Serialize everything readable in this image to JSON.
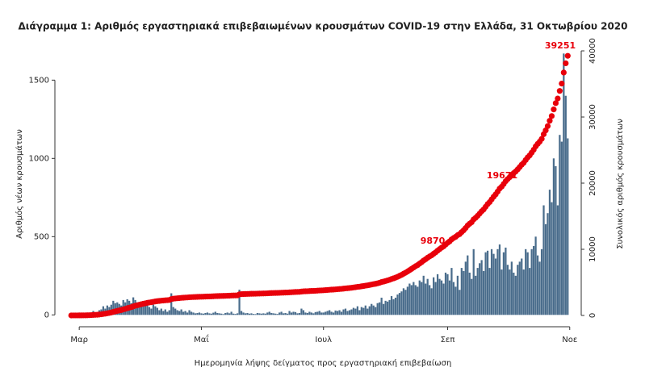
{
  "chart_data": {
    "type": "bar",
    "title": "Διάγραμμα 1: Αριθμός εργαστηριακά επιβεβαιωμένων κρουσμάτων COVID-19 στην Ελλάδα, 31 Οκτωβρίου 2020",
    "x_label": "Ημερομηνία λήψης δείγματος προς εργαστηριακή επιβεβαίωση",
    "y_label": "Αριθμός νέων κρουσμάτων",
    "y2_label": "Συνολικός αριθμός κρουσμάτων",
    "annotations": [
      "9870",
      "19671",
      "39251"
    ],
    "categories": [
      null,
      null,
      null,
      null,
      "Μαρ",
      null,
      null,
      null,
      null,
      null,
      null,
      null,
      null,
      null,
      null,
      null,
      null,
      null,
      null,
      null,
      null,
      null,
      null,
      null,
      null,
      null,
      null,
      null,
      null,
      null,
      null,
      null,
      null,
      null,
      null,
      null,
      null,
      null,
      null,
      null,
      null,
      null,
      null,
      null,
      null,
      null,
      null,
      null,
      null,
      null,
      null,
      null,
      null,
      null,
      null,
      null,
      null,
      null,
      null,
      null,
      null,
      null,
      null,
      null,
      null,
      "Μαΐ",
      null,
      null,
      null,
      null,
      null,
      null,
      null,
      null,
      null,
      null,
      null,
      null,
      null,
      null,
      null,
      null,
      null,
      null,
      null,
      null,
      null,
      null,
      null,
      null,
      null,
      null,
      null,
      null,
      null,
      null,
      null,
      null,
      null,
      null,
      null,
      null,
      null,
      null,
      null,
      null,
      null,
      null,
      null,
      null,
      null,
      null,
      null,
      null,
      null,
      null,
      null,
      null,
      null,
      null,
      null,
      null,
      null,
      null,
      null,
      null,
      "Ιουλ",
      null,
      null,
      null,
      null,
      null,
      null,
      null,
      null,
      null,
      null,
      null,
      null,
      null,
      null,
      null,
      null,
      null,
      null,
      null,
      null,
      null,
      null,
      null,
      null,
      null,
      null,
      null,
      null,
      null,
      null,
      null,
      null,
      null,
      null,
      null,
      null,
      null,
      null,
      null,
      null,
      null,
      null,
      null,
      null,
      null,
      null,
      null,
      null,
      null,
      null,
      null,
      null,
      null,
      null,
      null,
      null,
      null,
      null,
      null,
      null,
      null,
      "Σεπ",
      null,
      null,
      null,
      null,
      null,
      null,
      null,
      null,
      null,
      null,
      null,
      null,
      null,
      null,
      null,
      null,
      null,
      null,
      null,
      null,
      null,
      null,
      null,
      null,
      null,
      null,
      null,
      null,
      null,
      null,
      null,
      null,
      null,
      null,
      null,
      null,
      null,
      null,
      null,
      null,
      null,
      null,
      null,
      null,
      null,
      null,
      null,
      null,
      null,
      null,
      null,
      null,
      null,
      null,
      null,
      null,
      null,
      null,
      null,
      null,
      "Νοε"
    ],
    "series": [
      {
        "name": "Νέα κρούσματα",
        "color": "#4a6d8c",
        "values": [
          1,
          2,
          0,
          4,
          3,
          0,
          2,
          0,
          14,
          10,
          13,
          25,
          16,
          17,
          30,
          35,
          55,
          40,
          60,
          50,
          65,
          90,
          75,
          80,
          70,
          60,
          95,
          80,
          100,
          90,
          75,
          112,
          95,
          80,
          70,
          85,
          70,
          60,
          75,
          50,
          40,
          65,
          55,
          45,
          30,
          40,
          25,
          35,
          20,
          30,
          138,
          50,
          40,
          30,
          25,
          35,
          20,
          25,
          15,
          30,
          20,
          15,
          10,
          12,
          15,
          10,
          8,
          12,
          15,
          10,
          8,
          14,
          20,
          12,
          10,
          8,
          5,
          12,
          15,
          10,
          20,
          8,
          6,
          10,
          161,
          25,
          15,
          10,
          12,
          8,
          10,
          6,
          5,
          12,
          10,
          8,
          10,
          8,
          15,
          20,
          12,
          10,
          8,
          6,
          15,
          20,
          10,
          12,
          8,
          25,
          15,
          20,
          18,
          10,
          12,
          40,
          30,
          15,
          12,
          20,
          15,
          10,
          18,
          20,
          25,
          15,
          15,
          20,
          25,
          30,
          20,
          15,
          28,
          25,
          30,
          20,
          35,
          40,
          25,
          30,
          35,
          45,
          40,
          55,
          30,
          50,
          45,
          60,
          40,
          55,
          70,
          60,
          50,
          75,
          80,
          110,
          70,
          90,
          85,
          95,
          120,
          100,
          110,
          130,
          140,
          150,
          170,
          160,
          180,
          200,
          190,
          210,
          190,
          180,
          220,
          210,
          250,
          200,
          230,
          190,
          170,
          240,
          210,
          260,
          230,
          220,
          200,
          270,
          260,
          220,
          300,
          210,
          180,
          250,
          160,
          300,
          280,
          340,
          380,
          270,
          230,
          420,
          250,
          300,
          330,
          350,
          280,
          400,
          410,
          300,
          420,
          390,
          360,
          420,
          450,
          290,
          400,
          430,
          320,
          290,
          340,
          270,
          250,
          320,
          340,
          360,
          290,
          420,
          400,
          300,
          420,
          440,
          500,
          380,
          340,
          420,
          700,
          580,
          650,
          800,
          720,
          1000,
          950,
          700,
          1150,
          1107,
          1670,
          1400,
          1128,
          null
        ]
      },
      {
        "name": "Συνολικά κρούσματα",
        "color": "#e8000b",
        "axis": "y2",
        "values": [
          1,
          3,
          3,
          7,
          10,
          10,
          12,
          12,
          26,
          36,
          49,
          74,
          90,
          107,
          137,
          172,
          227,
          267,
          327,
          377,
          442,
          532,
          607,
          687,
          757,
          817,
          912,
          992,
          1092,
          1182,
          1257,
          1369,
          1464,
          1544,
          1614,
          1699,
          1769,
          1829,
          1904,
          1954,
          1994,
          2059,
          2114,
          2159,
          2189,
          2229,
          2254,
          2289,
          2309,
          2339,
          2477,
          2527,
          2567,
          2597,
          2622,
          2657,
          2677,
          2702,
          2717,
          2747,
          2767,
          2782,
          2792,
          2804,
          2819,
          2829,
          2837,
          2849,
          2864,
          2874,
          2882,
          2896,
          2916,
          2928,
          2938,
          2946,
          2951,
          2963,
          2978,
          2988,
          3008,
          3016,
          3022,
          3032,
          3193,
          3218,
          3233,
          3243,
          3255,
          3263,
          3273,
          3279,
          3284,
          3296,
          3306,
          3314,
          3324,
          3332,
          3347,
          3367,
          3379,
          3389,
          3397,
          3403,
          3418,
          3438,
          3448,
          3460,
          3468,
          3493,
          3508,
          3528,
          3546,
          3556,
          3568,
          3608,
          3638,
          3653,
          3665,
          3685,
          3700,
          3710,
          3728,
          3748,
          3773,
          3788,
          3803,
          3823,
          3848,
          3878,
          3898,
          3913,
          3941,
          3966,
          3996,
          4016,
          4051,
          4091,
          4116,
          4146,
          4181,
          4226,
          4266,
          4321,
          4351,
          4401,
          4446,
          4506,
          4546,
          4601,
          4671,
          4731,
          4781,
          4856,
          4936,
          5046,
          5116,
          5206,
          5291,
          5386,
          5506,
          5606,
          5716,
          5846,
          5986,
          6136,
          6306,
          6466,
          6646,
          6846,
          7036,
          7246,
          7436,
          7616,
          7836,
          8046,
          8296,
          8496,
          8726,
          8916,
          9086,
          9326,
          9536,
          9796,
          10026,
          10246,
          10446,
          10716,
          10976,
          11196,
          11496,
          11706,
          11886,
          12136,
          12296,
          12596,
          12876,
          13216,
          13596,
          13866,
          14096,
          14516,
          14766,
          15066,
          15396,
          15746,
          16026,
          16426,
          16836,
          17136,
          17556,
          17946,
          18306,
          18726,
          19176,
          19466,
          19866,
          20296,
          20616,
          20906,
          21246,
          21516,
          21766,
          22086,
          22426,
          22786,
          23076,
          23496,
          23896,
          24196,
          24616,
          25056,
          25556,
          25936,
          26276,
          26696,
          27396,
          27976,
          28626,
          29426,
          30146,
          31146,
          32096,
          32796,
          33946,
          35053,
          36723,
          38123,
          39251,
          null
        ]
      }
    ],
    "ylim": [
      -50,
      1780
    ],
    "yticks": [
      0,
      500,
      1000,
      1500
    ],
    "y2lim": [
      -1100,
      42200
    ],
    "y2ticks": [
      0,
      10000,
      20000,
      30000,
      40000
    ]
  }
}
